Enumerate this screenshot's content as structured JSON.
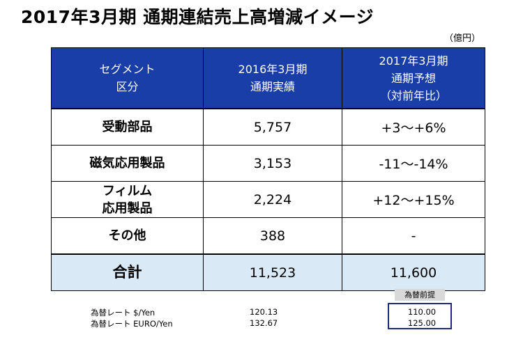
{
  "title": "2017年3月期 通期連結売上高増減イメージ",
  "unit": "（億円）",
  "table": {
    "headers": {
      "segment": [
        "セグメント",
        "区分"
      ],
      "actual_2016": [
        "2016年3月期",
        "通期実績"
      ],
      "forecast_2017": [
        "2017年3月期",
        "通期予想",
        "（対前年比）"
      ]
    },
    "rows": [
      {
        "segment": [
          "受動部品"
        ],
        "actual": "5,757",
        "forecast": "+3～+6%"
      },
      {
        "segment": [
          "磁気応用製品"
        ],
        "actual": "3,153",
        "forecast": "-11～-14%"
      },
      {
        "segment": [
          "フィルム",
          "応用製品"
        ],
        "actual": "2,224",
        "forecast": "+12～+15%"
      },
      {
        "segment": [
          "その他"
        ],
        "actual": "388",
        "forecast": "-"
      }
    ],
    "total": {
      "segment": [
        "合計"
      ],
      "actual": "11,523",
      "forecast": "11,600"
    }
  },
  "exchange_rates": {
    "premise_label": "為替前提",
    "rows": [
      {
        "label": "為替レート $/Yen",
        "actual": "120.13",
        "forecast": "110.00"
      },
      {
        "label": "為替レート EURO/Yen",
        "actual": "132.67",
        "forecast": "125.00"
      }
    ]
  }
}
